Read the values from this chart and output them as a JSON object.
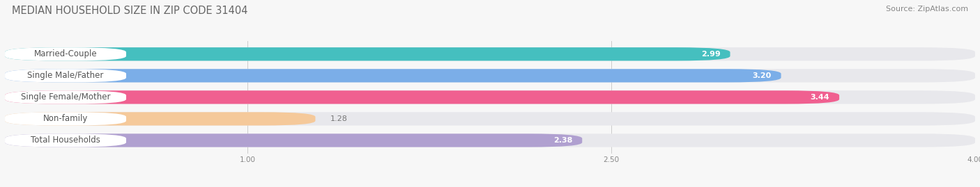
{
  "title": "MEDIAN HOUSEHOLD SIZE IN ZIP CODE 31404",
  "source": "Source: ZipAtlas.com",
  "categories": [
    "Married-Couple",
    "Single Male/Father",
    "Single Female/Mother",
    "Non-family",
    "Total Households"
  ],
  "values": [
    2.99,
    3.2,
    3.44,
    1.28,
    2.38
  ],
  "bar_colors": [
    "#45BFBF",
    "#7BAEE8",
    "#F06090",
    "#F5C99A",
    "#B0A0D0"
  ],
  "dot_colors": [
    "#45BFBF",
    "#7BAEE8",
    "#F06090",
    "#F5C99A",
    "#B0A0D0"
  ],
  "xlim_min": 0.0,
  "xlim_max": 4.0,
  "xstart": 0.5,
  "xticks": [
    1.0,
    2.5,
    4.0
  ],
  "title_fontsize": 10.5,
  "source_fontsize": 8,
  "label_fontsize": 8.5,
  "value_fontsize": 8,
  "background_color": "#f7f7f7",
  "bar_track_color": "#e8e8ec",
  "label_bg_color": "#ffffff"
}
